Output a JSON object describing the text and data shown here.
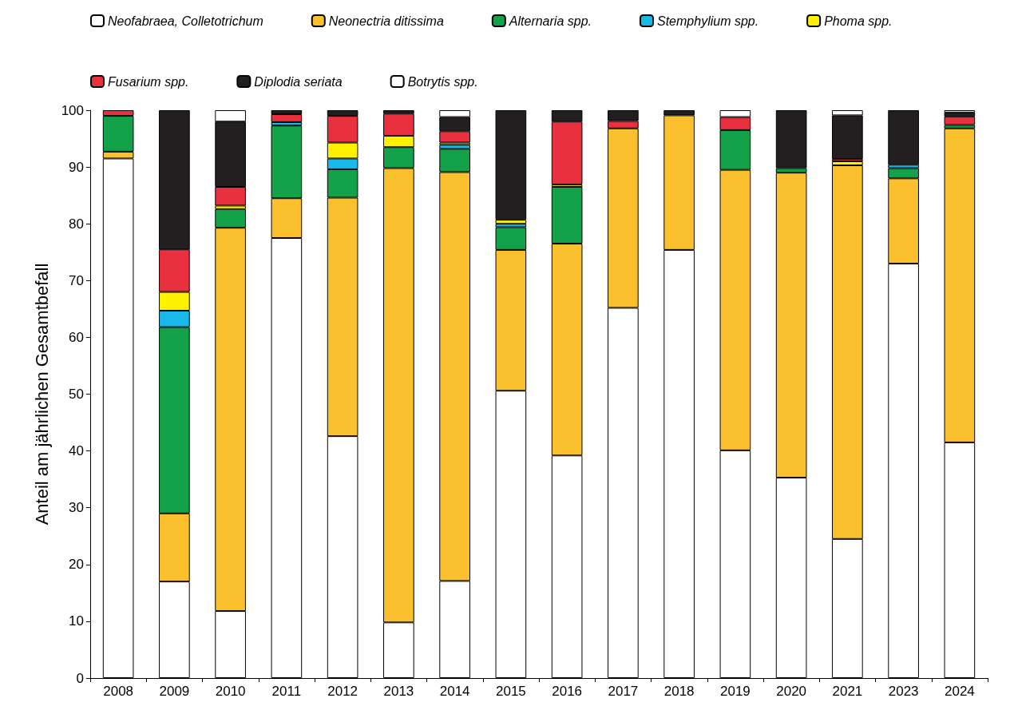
{
  "chart_data": {
    "type": "bar",
    "stacked": true,
    "ylabel": "Anteil am jährlichen Gesamtbefall",
    "categories": [
      "2008",
      "2009",
      "2010",
      "2011",
      "2012",
      "2013",
      "2014",
      "2015",
      "2016",
      "2017",
      "2018",
      "2019",
      "2020",
      "2021",
      "2023",
      "2024"
    ],
    "series": [
      {
        "name": "Neofabraea, Colletotrichum",
        "color": "#ffffff",
        "values": [
          91.5,
          17,
          11.8,
          77.5,
          42.6,
          9.8,
          17.1,
          50.6,
          39.2,
          65.2,
          75.4,
          40.1,
          35.3,
          24.5,
          73,
          41.5
        ]
      },
      {
        "name": "Neonectria ditissima",
        "color": "#fbc02d",
        "values": [
          1.2,
          12,
          67.5,
          7,
          42,
          80,
          72,
          24.8,
          37.3,
          31.6,
          23.7,
          49.4,
          53.7,
          65.8,
          15,
          55.3
        ]
      },
      {
        "name": "Alternaria spp.",
        "color": "#13a24a",
        "values": [
          6.3,
          32.8,
          3.3,
          12.8,
          5,
          3.7,
          4.1,
          4,
          10,
          null,
          null,
          7,
          0.8,
          null,
          1.8,
          0.6
        ]
      },
      {
        "name": "Stemphylium spp.",
        "color": "#1ab8e8",
        "values": [
          null,
          2.9,
          null,
          0.6,
          1.9,
          null,
          0.7,
          0.6,
          null,
          null,
          null,
          null,
          null,
          null,
          0.6,
          null
        ]
      },
      {
        "name": "Phoma spp.",
        "color": "#fff200",
        "values": [
          null,
          3.3,
          0.6,
          null,
          2.8,
          2,
          0.4,
          0.7,
          0.4,
          null,
          null,
          null,
          null,
          0.7,
          null,
          null
        ]
      },
      {
        "name": "Fusarium spp.",
        "color": "#e8303f",
        "values": [
          1,
          7.5,
          3.3,
          1.4,
          4.7,
          3.9,
          2,
          null,
          11.1,
          1.3,
          null,
          2.3,
          null,
          0.4,
          null,
          1.5
        ]
      },
      {
        "name": "Diplodia seriata",
        "color": "#231f20",
        "values": [
          null,
          24.5,
          11.5,
          0.7,
          1,
          0.6,
          2.5,
          19.3,
          2,
          1.9,
          0.9,
          null,
          10.2,
          7.7,
          9.6,
          0.7
        ]
      },
      {
        "name": "Botrytis spp.",
        "color": "#ffffff",
        "values": [
          null,
          null,
          2,
          null,
          null,
          null,
          1.2,
          null,
          null,
          null,
          null,
          1.2,
          null,
          0.9,
          null,
          0.4
        ]
      }
    ],
    "ylim": [
      0,
      100
    ],
    "yticks": [
      0,
      10,
      20,
      30,
      40,
      50,
      60,
      70,
      80,
      90,
      100
    ],
    "grid": false,
    "legend": "top"
  }
}
